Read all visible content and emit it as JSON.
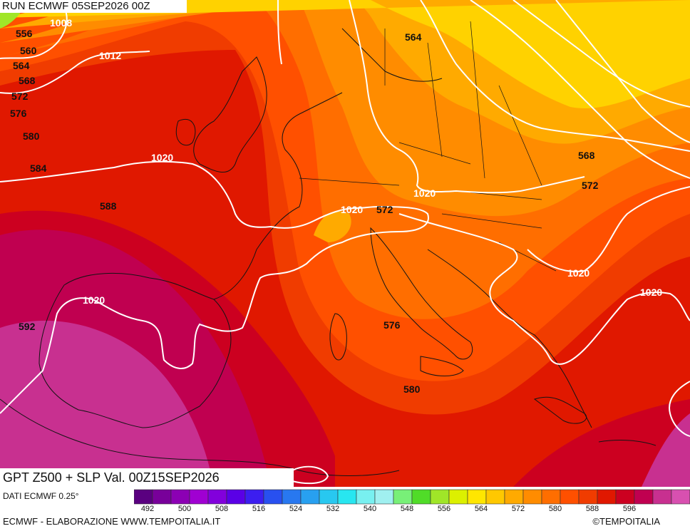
{
  "header": {
    "run_label": "RUN ECMWF 05SEP2026 00Z"
  },
  "title": "GPT Z500 + SLP Val. 00Z15SEP2026",
  "footer": {
    "source": "DATI ECMWF 0.25°",
    "elaboration": "ECMWF - ELABORAZIONE WWW.TEMPOITALIA.IT",
    "copyright": "©TEMPOITALIA"
  },
  "map": {
    "gpt_labels": [
      "556",
      "560",
      "564",
      "568",
      "572",
      "576",
      "580",
      "584",
      "588",
      "592",
      "564",
      "568",
      "572",
      "572",
      "576",
      "580"
    ],
    "slp_labels": [
      "1008",
      "1012",
      "1020",
      "1020",
      "1020",
      "1020",
      "1020",
      "1020"
    ],
    "colors": {
      "gpt_556": "#f0f000",
      "gpt_560": "#ffd200",
      "gpt_564": "#ffaa00",
      "gpt_568": "#ff8c00",
      "gpt_572": "#ff6e00",
      "gpt_576": "#ff5000",
      "gpt_580": "#f03c00",
      "gpt_584": "#e01800",
      "gpt_588": "#cc0020",
      "gpt_592": "#c00050",
      "gpt_596": "#c83090",
      "isobar": "#ffffff",
      "coastline": "#141414"
    }
  },
  "scale": {
    "ticks": [
      "492",
      "500",
      "508",
      "516",
      "524",
      "532",
      "540",
      "548",
      "556",
      "564",
      "572",
      "580",
      "588",
      "596"
    ],
    "colors": [
      "#5a0080",
      "#78009a",
      "#8c00b4",
      "#a000d2",
      "#8200dc",
      "#5a00e6",
      "#3c1ef0",
      "#2850f0",
      "#2878f0",
      "#28a0f0",
      "#28c8f0",
      "#28e6f0",
      "#78f0f0",
      "#a0f0f0",
      "#78f078",
      "#50dc28",
      "#a0e628",
      "#dcf000",
      "#ffe600",
      "#ffc800",
      "#ffaa00",
      "#ff8c00",
      "#ff6e00",
      "#ff5000",
      "#f03c00",
      "#e01800",
      "#cc0020",
      "#c00050",
      "#c83090",
      "#d850b0",
      "#f070d8"
    ]
  }
}
